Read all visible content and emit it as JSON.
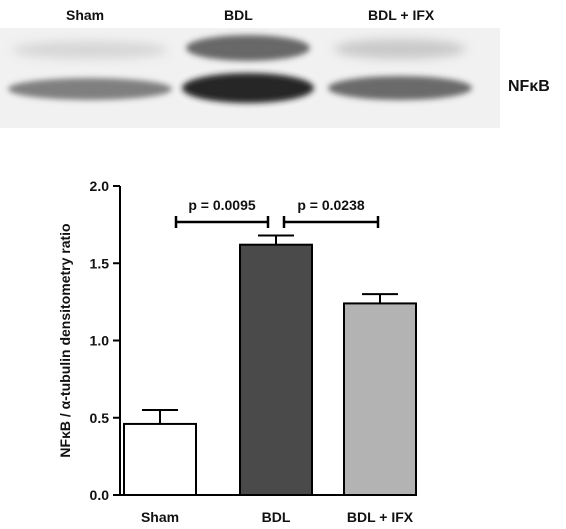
{
  "blot": {
    "lanes": [
      "Sham",
      "BDL",
      "BDL + IFX"
    ],
    "protein": "NFκB"
  },
  "chart_data": {
    "type": "bar",
    "categories": [
      "Sham",
      "BDL",
      "BDL + IFX"
    ],
    "values": [
      0.46,
      1.62,
      1.24
    ],
    "errors": [
      0.09,
      0.06,
      0.06
    ],
    "bar_colors": [
      "#ffffff",
      "#4a4a4a",
      "#b3b3b3"
    ],
    "title": "",
    "xlabel": "",
    "ylabel": "NFκB / α-tubulin densitometry ratio",
    "ylim": [
      0,
      2.0
    ],
    "yticks": [
      "0.0",
      "0.5",
      "1.0",
      "1.5",
      "2.0"
    ],
    "annotations": [
      {
        "from": 0,
        "to": 1,
        "text": "p = 0.0095"
      },
      {
        "from": 1,
        "to": 2,
        "text": "p = 0.0238"
      }
    ]
  }
}
